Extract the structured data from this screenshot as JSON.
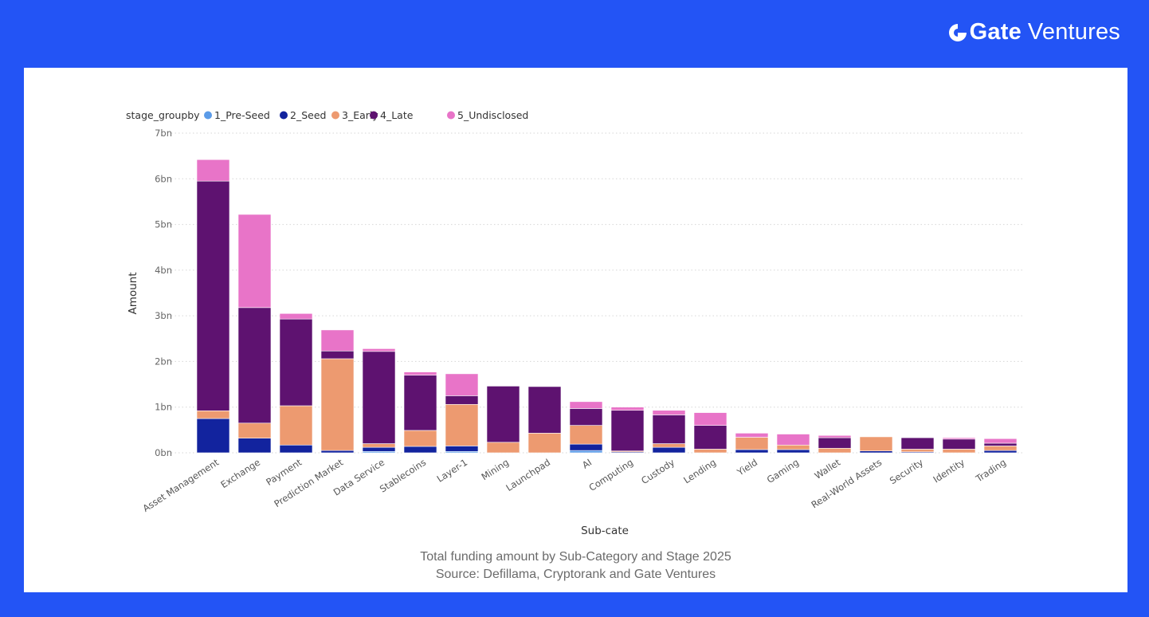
{
  "brand": {
    "name_bold": "Gate",
    "name_light": "Ventures",
    "logo_icon": "gate-logo-icon"
  },
  "caption": {
    "line1": "Total funding amount by Sub-Category and Stage 2025",
    "line2": "Source: Defillama, Cryptorank and Gate Ventures"
  },
  "chart_data": {
    "type": "bar",
    "stacked": true,
    "title": "Total funding amount by Sub-Category and Stage 2025",
    "xlabel": "Sub-cate",
    "ylabel": "Amount",
    "unit": "bn",
    "ylim": [
      0,
      7
    ],
    "yticks": [
      0,
      1,
      2,
      3,
      4,
      5,
      6,
      7
    ],
    "ytick_labels": [
      "0bn",
      "1bn",
      "2bn",
      "3bn",
      "4bn",
      "5bn",
      "6bn",
      "7bn"
    ],
    "grid": true,
    "legend": {
      "title": "stage_groupby",
      "position": "top-left",
      "entries": [
        "1_Pre-Seed",
        "2_Seed",
        "3_Early",
        "4_Late",
        "5_Undisclosed"
      ]
    },
    "categories": [
      "Asset Management",
      "Exchange",
      "Payment",
      "Prediction Market",
      "Data Service",
      "Stablecoins",
      "Layer-1",
      "Mining",
      "Launchpad",
      "AI",
      "Computing",
      "Custody",
      "Lending",
      "Yield",
      "Gaming",
      "Wallet",
      "Real-World Assets",
      "Security",
      "Identity",
      "Trading"
    ],
    "series": [
      {
        "name": "1_Pre-Seed",
        "color": "#5B9BE8",
        "values": [
          0,
          0,
          0,
          0,
          0.03,
          0,
          0.03,
          0,
          0,
          0.05,
          0,
          0,
          0,
          0,
          0,
          0,
          0,
          0,
          0,
          0
        ]
      },
      {
        "name": "2_Seed",
        "color": "#12239E",
        "values": [
          0.75,
          0.32,
          0.17,
          0.05,
          0.09,
          0.14,
          0.12,
          0,
          0,
          0.14,
          0.02,
          0.12,
          0,
          0.07,
          0.07,
          0,
          0.04,
          0.02,
          0,
          0.05
        ]
      },
      {
        "name": "3_Early",
        "color": "#ED9A70",
        "values": [
          0.17,
          0.33,
          0.86,
          2.01,
          0.08,
          0.35,
          0.91,
          0.23,
          0.43,
          0.41,
          0.02,
          0.08,
          0.08,
          0.27,
          0.1,
          0.1,
          0.31,
          0.06,
          0.08,
          0.1
        ]
      },
      {
        "name": "4_Late",
        "color": "#5E1270",
        "values": [
          5.03,
          2.53,
          1.9,
          0.17,
          2.02,
          1.21,
          0.19,
          1.23,
          1.02,
          0.37,
          0.89,
          0.63,
          0.52,
          0,
          0,
          0.23,
          0,
          0.25,
          0.22,
          0.06
        ]
      },
      {
        "name": "5_Undisclosed",
        "color": "#E874C8",
        "values": [
          0.47,
          2.04,
          0.12,
          0.46,
          0.06,
          0.07,
          0.48,
          0,
          0,
          0.15,
          0.07,
          0.1,
          0.28,
          0.09,
          0.24,
          0.05,
          0,
          0,
          0.03,
          0.1
        ]
      }
    ]
  }
}
